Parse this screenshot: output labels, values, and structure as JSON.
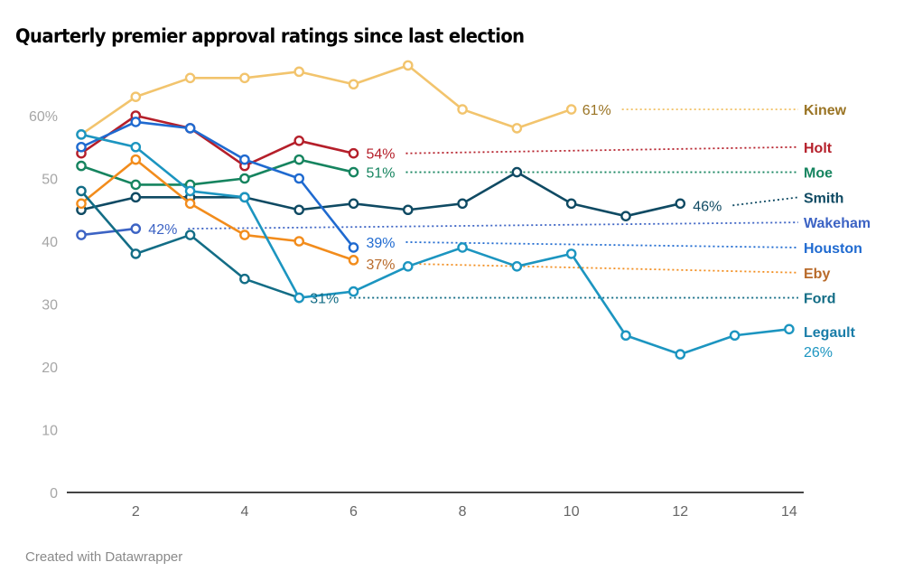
{
  "chart_data": {
    "type": "line",
    "title": "Quarterly premier approval ratings since last election",
    "xlabel": "",
    "ylabel": "",
    "xlim": [
      1,
      14
    ],
    "ylim": [
      0,
      70
    ],
    "x_ticks": [
      2,
      4,
      6,
      8,
      10,
      12,
      14
    ],
    "y_ticks": [
      {
        "value": 0,
        "label": "0"
      },
      {
        "value": 10,
        "label": "10"
      },
      {
        "value": 20,
        "label": "20"
      },
      {
        "value": 30,
        "label": "30"
      },
      {
        "value": 40,
        "label": "40"
      },
      {
        "value": 50,
        "label": "50"
      },
      {
        "value": 60,
        "label": "60%"
      }
    ],
    "grid": false,
    "legend": "right (direct labels)",
    "series": [
      {
        "name": "Kinew",
        "color": "#f2c46d",
        "label_color": "#9a7424",
        "x": [
          1,
          2,
          3,
          4,
          5,
          6,
          7,
          8,
          9,
          10
        ],
        "values": [
          57,
          63,
          66,
          66,
          67,
          65,
          68,
          61,
          58,
          61
        ],
        "end_label": "61%",
        "name_label_value": 61
      },
      {
        "name": "Holt",
        "color": "#b51f2a",
        "label_color": "#b51f2a",
        "x": [
          1,
          2,
          3,
          4,
          5,
          6
        ],
        "values": [
          54,
          60,
          58,
          52,
          56,
          54
        ],
        "end_label": "54%",
        "name_label_value": 55
      },
      {
        "name": "Moe",
        "color": "#16845f",
        "label_color": "#16845f",
        "x": [
          1,
          2,
          3,
          4,
          5,
          6
        ],
        "values": [
          52,
          49,
          49,
          50,
          53,
          51
        ],
        "end_label": "51%",
        "name_label_value": 51
      },
      {
        "name": "Smith",
        "color": "#0f4a63",
        "label_color": "#0f4a63",
        "x": [
          1,
          2,
          3,
          4,
          5,
          6,
          7,
          8,
          9,
          10,
          11,
          12
        ],
        "values": [
          45,
          47,
          47,
          47,
          45,
          46,
          45,
          46,
          51,
          46,
          44,
          46
        ],
        "end_label": "46%",
        "name_label_value": 47
      },
      {
        "name": "Wakeham",
        "color": "#3c63c4",
        "label_color": "#3c63c4",
        "x": [
          1,
          2
        ],
        "values": [
          41,
          42
        ],
        "end_label": "42%",
        "name_label_value": 43
      },
      {
        "name": "Houston",
        "color": "#1f6ad0",
        "label_color": "#1f6ad0",
        "x": [
          1,
          2,
          3,
          4,
          5,
          6
        ],
        "values": [
          55,
          59,
          58,
          53,
          50,
          39
        ],
        "end_label": "39%",
        "name_label_value": 39
      },
      {
        "name": "Eby",
        "color": "#f28c1c",
        "label_color": "#b86a2a",
        "x": [
          1,
          2,
          3,
          4,
          5,
          6
        ],
        "values": [
          46,
          53,
          46,
          41,
          40,
          37
        ],
        "end_label": "37%",
        "name_label_value": 35
      },
      {
        "name": "Ford",
        "color": "#136d86",
        "label_color": "#136d86",
        "x": [
          1,
          2,
          3,
          4,
          5
        ],
        "values": [
          48,
          38,
          41,
          34,
          31
        ],
        "end_label": "31%",
        "name_label_value": 31
      },
      {
        "name": "Legault",
        "color": "#1c95c0",
        "label_color": "#1a7da8",
        "x": [
          1,
          2,
          3,
          4,
          5,
          6,
          7,
          8,
          9,
          10,
          11,
          12,
          13,
          14
        ],
        "values": [
          57,
          55,
          48,
          47,
          31,
          32,
          36,
          39,
          36,
          38,
          25,
          22,
          25,
          26
        ],
        "end_label": "26%",
        "name_label_value": 26
      }
    ]
  },
  "footer": "Created with Datawrapper"
}
